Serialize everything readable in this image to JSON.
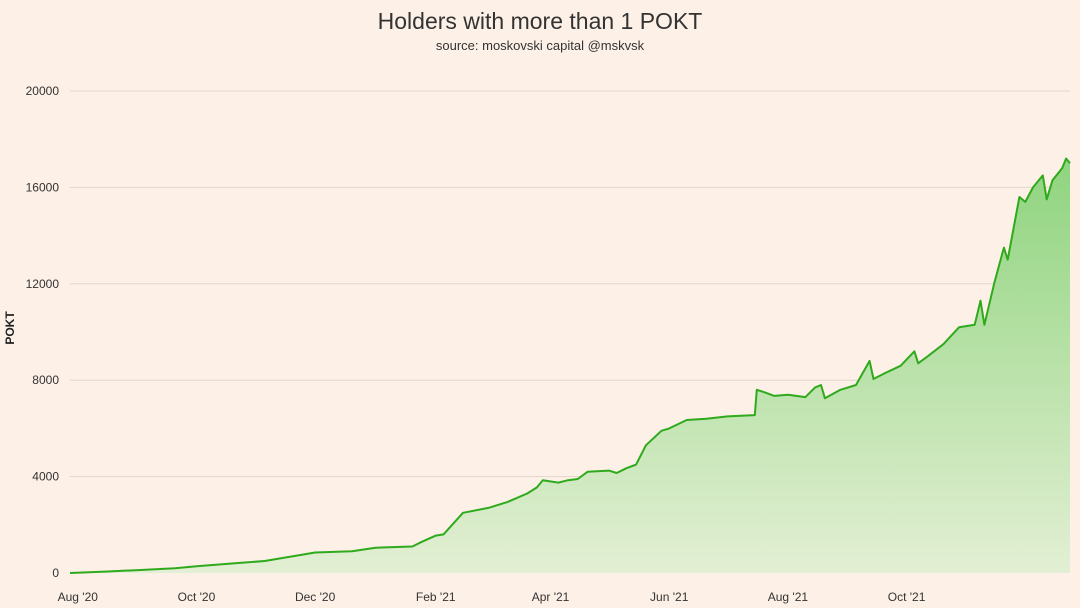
{
  "chart_data": {
    "type": "area",
    "title": "Holders with more than 1 POKT",
    "subtitle": "source: moskovski capital @mskvsk",
    "xlabel": "",
    "ylabel": "POKT",
    "ylim": [
      0,
      20000
    ],
    "yticks": [
      "0",
      "4000",
      "8000",
      "12000",
      "16000",
      "20000"
    ],
    "x_ticks": [
      {
        "label": "Aug '20",
        "date": "2020-08-01"
      },
      {
        "label": "Oct '20",
        "date": "2020-10-01"
      },
      {
        "label": "Dec '20",
        "date": "2020-12-01"
      },
      {
        "label": "Feb '21",
        "date": "2021-02-01"
      },
      {
        "label": "Apr '21",
        "date": "2021-04-01"
      },
      {
        "label": "Jun '21",
        "date": "2021-06-01"
      },
      {
        "label": "Aug '21",
        "date": "2021-08-01"
      },
      {
        "label": "Oct '21",
        "date": "2021-10-01"
      }
    ],
    "grid": true,
    "legend": "none",
    "colors": {
      "line": "#2faa1c",
      "fill_top": "#8fd47e",
      "fill_bottom": "#e3efd4"
    },
    "series": [
      {
        "points": [
          [
            "2020-07-28",
            0
          ],
          [
            "2020-08-15",
            60
          ],
          [
            "2020-09-01",
            120
          ],
          [
            "2020-09-20",
            200
          ],
          [
            "2020-10-01",
            280
          ],
          [
            "2020-10-20",
            400
          ],
          [
            "2020-11-05",
            500
          ],
          [
            "2020-11-20",
            700
          ],
          [
            "2020-12-01",
            850
          ],
          [
            "2020-12-20",
            900
          ],
          [
            "2021-01-01",
            1050
          ],
          [
            "2021-01-20",
            1100
          ],
          [
            "2021-01-25",
            1300
          ],
          [
            "2021-02-01",
            1550
          ],
          [
            "2021-02-05",
            1600
          ],
          [
            "2021-02-10",
            2050
          ],
          [
            "2021-02-15",
            2500
          ],
          [
            "2021-02-28",
            2700
          ],
          [
            "2021-03-10",
            2950
          ],
          [
            "2021-03-20",
            3300
          ],
          [
            "2021-03-25",
            3550
          ],
          [
            "2021-03-28",
            3850
          ],
          [
            "2021-04-05",
            3750
          ],
          [
            "2021-04-10",
            3850
          ],
          [
            "2021-04-15",
            3900
          ],
          [
            "2021-04-20",
            4200
          ],
          [
            "2021-05-01",
            4250
          ],
          [
            "2021-05-05",
            4150
          ],
          [
            "2021-05-10",
            4350
          ],
          [
            "2021-05-15",
            4500
          ],
          [
            "2021-05-20",
            5300
          ],
          [
            "2021-05-28",
            5900
          ],
          [
            "2021-06-01",
            6000
          ],
          [
            "2021-06-10",
            6350
          ],
          [
            "2021-06-20",
            6400
          ],
          [
            "2021-07-01",
            6500
          ],
          [
            "2021-07-15",
            6550
          ],
          [
            "2021-07-16",
            7600
          ],
          [
            "2021-07-20",
            7500
          ],
          [
            "2021-07-25",
            7350
          ],
          [
            "2021-08-01",
            7400
          ],
          [
            "2021-08-10",
            7300
          ],
          [
            "2021-08-15",
            7700
          ],
          [
            "2021-08-18",
            7800
          ],
          [
            "2021-08-20",
            7250
          ],
          [
            "2021-08-28",
            7600
          ],
          [
            "2021-09-05",
            7800
          ],
          [
            "2021-09-12",
            8800
          ],
          [
            "2021-09-14",
            8050
          ],
          [
            "2021-09-20",
            8300
          ],
          [
            "2021-09-28",
            8600
          ],
          [
            "2021-10-05",
            9200
          ],
          [
            "2021-10-07",
            8700
          ],
          [
            "2021-10-12",
            9000
          ],
          [
            "2021-10-20",
            9500
          ],
          [
            "2021-10-28",
            10200
          ],
          [
            "2021-11-05",
            10300
          ],
          [
            "2021-11-08",
            11300
          ],
          [
            "2021-11-10",
            10300
          ],
          [
            "2021-11-15",
            12000
          ],
          [
            "2021-11-20",
            13500
          ],
          [
            "2021-11-22",
            13000
          ],
          [
            "2021-11-28",
            15600
          ],
          [
            "2021-12-01",
            15400
          ],
          [
            "2021-12-05",
            16000
          ],
          [
            "2021-12-10",
            16500
          ],
          [
            "2021-12-12",
            15500
          ],
          [
            "2021-12-15",
            16300
          ],
          [
            "2021-12-20",
            16800
          ],
          [
            "2021-12-22",
            17200
          ],
          [
            "2021-12-24",
            17000
          ]
        ]
      }
    ]
  }
}
